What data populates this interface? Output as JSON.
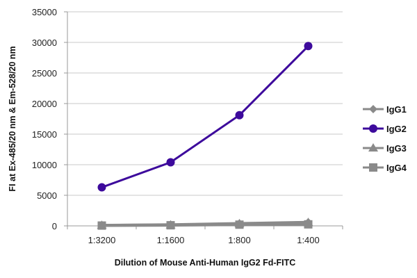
{
  "chart_data": {
    "type": "line",
    "title": "",
    "xlabel": "Dilution of Mouse Anti-Human IgG2 Fd-FITC",
    "ylabel": "FI at Ex-485/20 nm & Em-528/20 nm",
    "categories": [
      "1:3200",
      "1:1600",
      "1:800",
      "1:400"
    ],
    "ylim": [
      0,
      35000
    ],
    "yticks": [
      0,
      5000,
      10000,
      15000,
      20000,
      25000,
      30000,
      35000
    ],
    "grid": true,
    "legend": "right",
    "series": [
      {
        "name": "IgG1",
        "marker": "diamond",
        "color": "#8a8a8a",
        "values": [
          100,
          200,
          400,
          600
        ]
      },
      {
        "name": "IgG2",
        "marker": "circle",
        "color": "#3d0a9c",
        "values": [
          6300,
          10400,
          18100,
          29400
        ]
      },
      {
        "name": "IgG3",
        "marker": "triangle",
        "color": "#8a8a8a",
        "values": [
          100,
          150,
          350,
          550
        ]
      },
      {
        "name": "IgG4",
        "marker": "square",
        "color": "#8a8a8a",
        "values": [
          50,
          100,
          200,
          250
        ]
      }
    ]
  }
}
